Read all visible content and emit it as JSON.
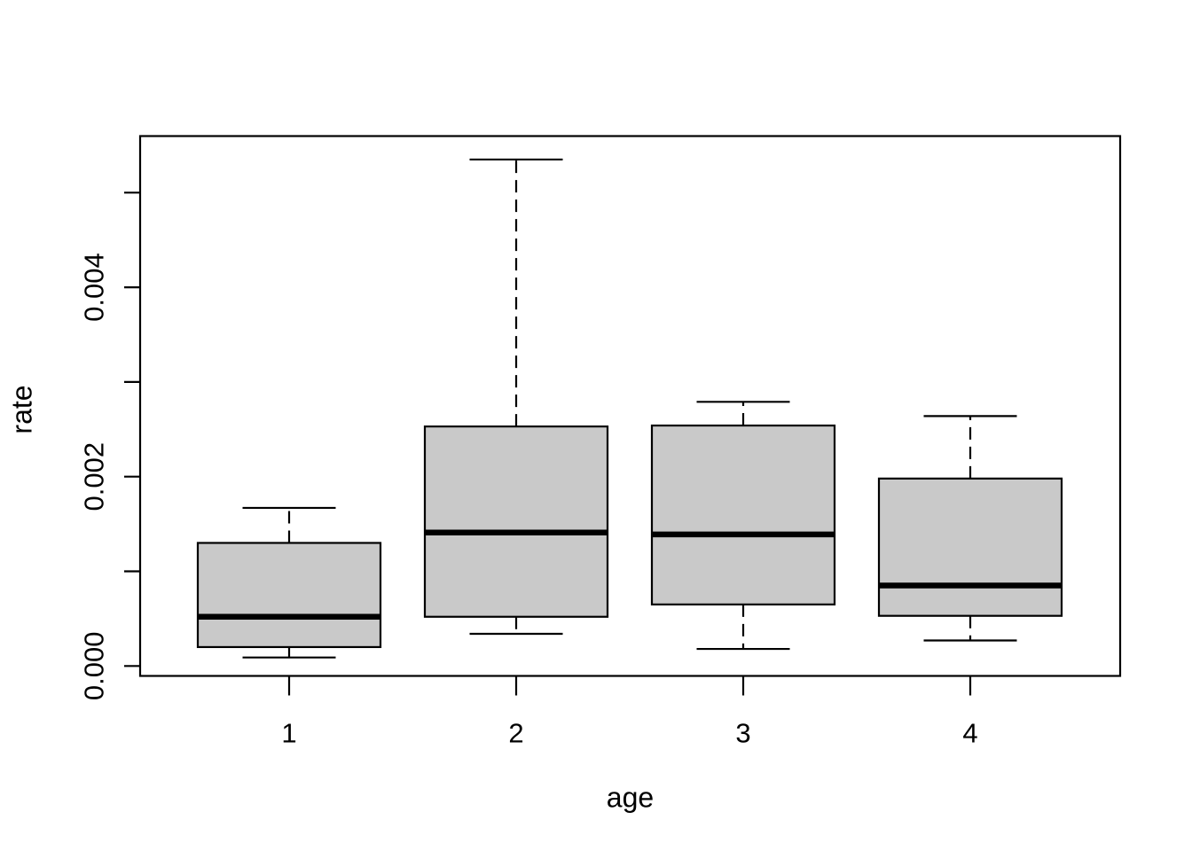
{
  "chart_data": {
    "type": "boxplot",
    "title": "",
    "xlabel": "age",
    "ylabel": "rate",
    "categories": [
      "1",
      "2",
      "3",
      "4"
    ],
    "series": [
      {
        "name": "age 1",
        "whisker_low": 9e-05,
        "q1": 0.0002,
        "median": 0.00052,
        "q3": 0.0013,
        "whisker_high": 0.00167
      },
      {
        "name": "age 2",
        "whisker_low": 0.00034,
        "q1": 0.00052,
        "median": 0.00141,
        "q3": 0.00253,
        "whisker_high": 0.00535
      },
      {
        "name": "age 3",
        "whisker_low": 0.00018,
        "q1": 0.00065,
        "median": 0.00139,
        "q3": 0.00254,
        "whisker_high": 0.00279
      },
      {
        "name": "age 4",
        "whisker_low": 0.00027,
        "q1": 0.00053,
        "median": 0.00085,
        "q3": 0.00198,
        "whisker_high": 0.00264
      }
    ],
    "ylim": [
      -0.0001,
      0.0056
    ],
    "yticks": [
      0.0,
      0.001,
      0.002,
      0.003,
      0.004,
      0.005
    ],
    "ytick_labels": [
      "0.000",
      "",
      "0.002",
      "",
      "0.004",
      ""
    ],
    "grid": false,
    "legend": false,
    "box_style": {
      "fill": "#c9c9c9",
      "stroke": "#000000",
      "whisker_dashed": true
    },
    "background": "#ffffff"
  }
}
